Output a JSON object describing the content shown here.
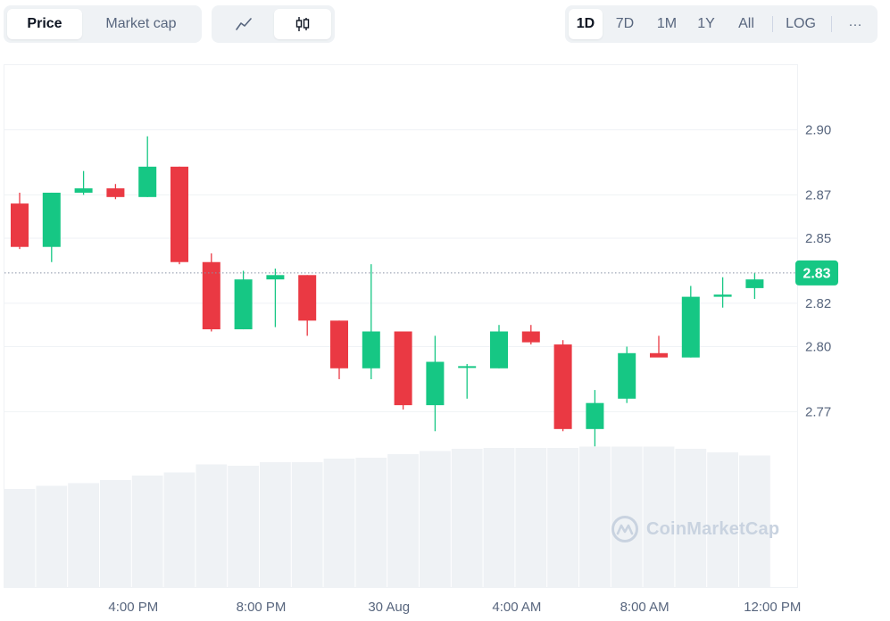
{
  "tabs": {
    "metric": [
      {
        "label": "Price",
        "active": true
      },
      {
        "label": "Market cap",
        "active": false
      }
    ],
    "chart_type": [
      {
        "icon": "line-chart-icon",
        "active": false
      },
      {
        "icon": "candlestick-icon",
        "active": true
      }
    ],
    "ranges": [
      {
        "label": "1D",
        "active": true
      },
      {
        "label": "7D",
        "active": false
      },
      {
        "label": "1M",
        "active": false
      },
      {
        "label": "1Y",
        "active": false
      },
      {
        "label": "All",
        "active": false
      }
    ],
    "scale_label": "LOG",
    "more_label": "···"
  },
  "watermark": "CoinMarketCap",
  "colors": {
    "up": "#16c784",
    "down": "#ea3943",
    "volume": "#eff2f5",
    "grid": "#eff2f5",
    "current": "#16c784"
  },
  "chart_data": {
    "type": "candlestick",
    "current_price": 2.834,
    "current_price_label": "2.83",
    "ylim": [
      2.755,
      2.92
    ],
    "yticks": [
      2.77,
      2.8,
      2.82,
      2.85,
      2.87,
      2.9
    ],
    "ytick_labels": [
      "2.77",
      "2.80",
      "2.82",
      "2.85",
      "2.87",
      "2.90"
    ],
    "xtick_labels": [
      {
        "label": "4:00 PM",
        "at": 4
      },
      {
        "label": "8:00 PM",
        "at": 8
      },
      {
        "label": "30 Aug",
        "at": 12
      },
      {
        "label": "4:00 AM",
        "at": 16
      },
      {
        "label": "8:00 AM",
        "at": 20
      },
      {
        "label": "12:00 PM",
        "at": 24
      }
    ],
    "candles": [
      {
        "o": 2.866,
        "h": 2.871,
        "l": 2.845,
        "c": 2.846
      },
      {
        "o": 2.846,
        "h": 2.871,
        "l": 2.839,
        "c": 2.871
      },
      {
        "o": 2.871,
        "h": 2.881,
        "l": 2.87,
        "c": 2.873
      },
      {
        "o": 2.873,
        "h": 2.875,
        "l": 2.868,
        "c": 2.869
      },
      {
        "o": 2.869,
        "h": 2.897,
        "l": 2.869,
        "c": 2.883
      },
      {
        "o": 2.883,
        "h": 2.883,
        "l": 2.838,
        "c": 2.839
      },
      {
        "o": 2.839,
        "h": 2.843,
        "l": 2.807,
        "c": 2.808
      },
      {
        "o": 2.808,
        "h": 2.835,
        "l": 2.808,
        "c": 2.831
      },
      {
        "o": 2.831,
        "h": 2.836,
        "l": 2.809,
        "c": 2.833
      },
      {
        "o": 2.833,
        "h": 2.833,
        "l": 2.805,
        "c": 2.812
      },
      {
        "o": 2.812,
        "h": 2.812,
        "l": 2.785,
        "c": 2.79
      },
      {
        "o": 2.79,
        "h": 2.838,
        "l": 2.785,
        "c": 2.807
      },
      {
        "o": 2.807,
        "h": 2.807,
        "l": 2.771,
        "c": 2.773
      },
      {
        "o": 2.773,
        "h": 2.805,
        "l": 2.761,
        "c": 2.793
      },
      {
        "o": 2.791,
        "h": 2.792,
        "l": 2.776,
        "c": 2.791
      },
      {
        "o": 2.79,
        "h": 2.81,
        "l": 2.79,
        "c": 2.807
      },
      {
        "o": 2.807,
        "h": 2.81,
        "l": 2.801,
        "c": 2.802
      },
      {
        "o": 2.801,
        "h": 2.803,
        "l": 2.761,
        "c": 2.762
      },
      {
        "o": 2.762,
        "h": 2.78,
        "l": 2.754,
        "c": 2.774
      },
      {
        "o": 2.776,
        "h": 2.8,
        "l": 2.774,
        "c": 2.797
      },
      {
        "o": 2.797,
        "h": 2.805,
        "l": 2.796,
        "c": 2.795
      },
      {
        "o": 2.795,
        "h": 2.828,
        "l": 2.795,
        "c": 2.823
      },
      {
        "o": 2.823,
        "h": 2.832,
        "l": 2.818,
        "c": 2.824
      },
      {
        "o": 2.827,
        "h": 2.834,
        "l": 2.822,
        "c": 2.831
      }
    ],
    "volume": [
      0.22,
      0.227,
      0.233,
      0.24,
      0.25,
      0.257,
      0.275,
      0.272,
      0.28,
      0.28,
      0.288,
      0.29,
      0.298,
      0.305,
      0.31,
      0.312,
      0.312,
      0.312,
      0.315,
      0.315,
      0.315,
      0.31,
      0.302,
      0.295
    ]
  }
}
